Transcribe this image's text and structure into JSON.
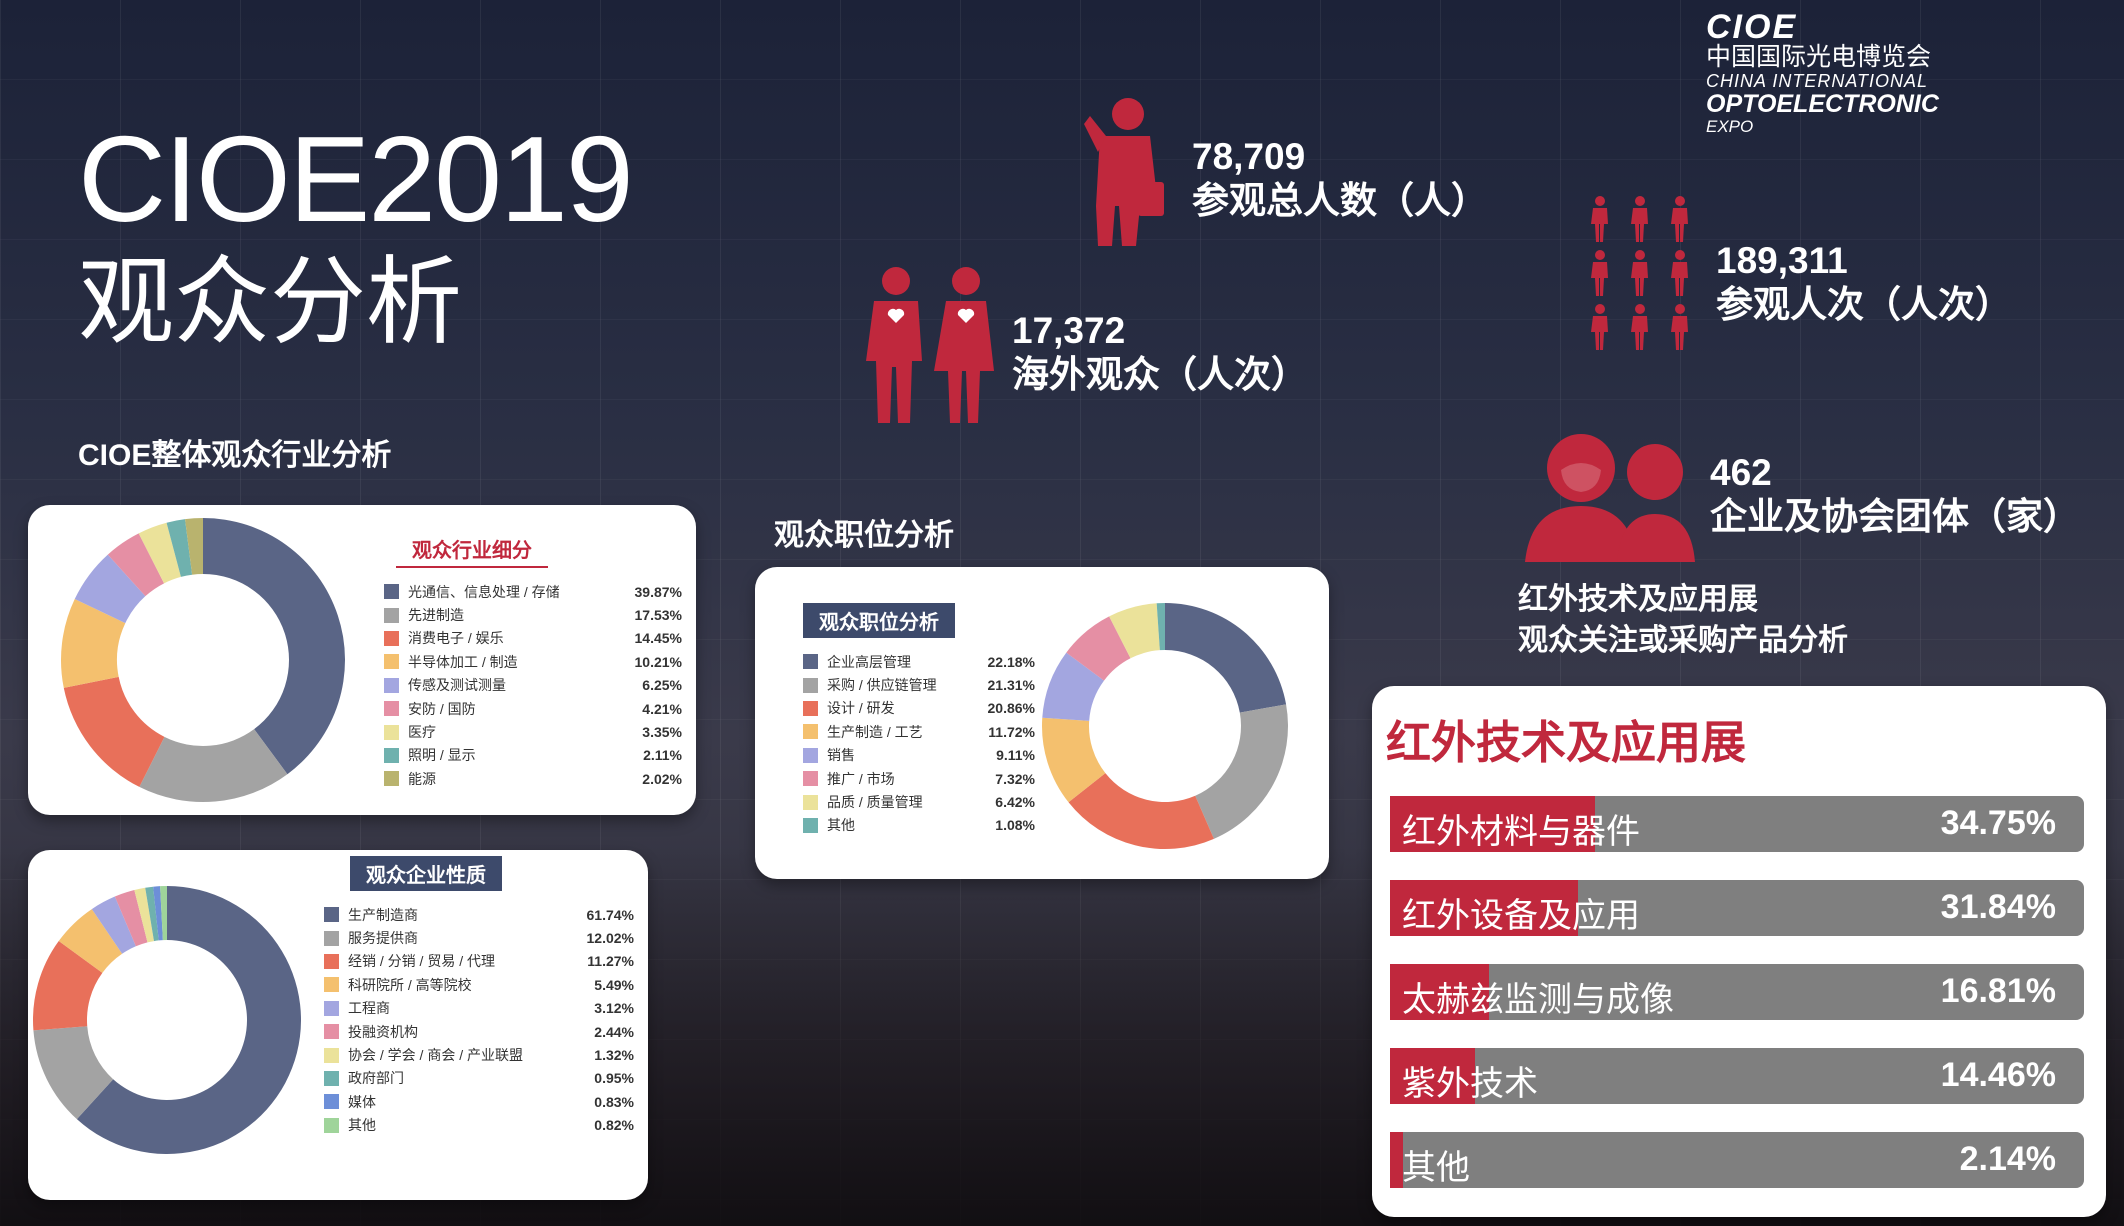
{
  "title": "CIOE2019",
  "subtitle": "观众分析",
  "logo": {
    "brand": "CIOE",
    "cn_name": "中国国际光电博览会",
    "en_line1": "CHINA INTERNATIONAL",
    "en_line2": "OPTOELECTRONIC",
    "en_line3": "EXPO"
  },
  "colors": {
    "accent_red": "#c0283d",
    "bar_gray": "#7f7f7f"
  },
  "stats": {
    "total_visitors": {
      "value": "78,709",
      "label": "参观总人数（人）",
      "icon": "businessman-icon"
    },
    "overseas": {
      "value": "17,372",
      "label": "海外观众（人次）",
      "icon": "couple-icon"
    },
    "visits": {
      "value": "189,311",
      "label": "参观人次（人次）",
      "icon": "crowd-icon"
    },
    "groups": {
      "value": "462",
      "label": "企业及协会团体（家）",
      "icon": "group-icon"
    }
  },
  "section_titles": {
    "industry": "CIOE整体观众行业分析",
    "position": "观众职位分析",
    "infrared": [
      "红外技术及应用展",
      "观众关注或采购产品分析"
    ]
  },
  "chart_data": [
    {
      "type": "pie",
      "title": "观众行业细分",
      "categories": [
        "光通信、信息处理 / 存储",
        "先进制造",
        "消费电子 / 娱乐",
        "半导体加工 / 制造",
        "传感及测试测量",
        "安防 / 国防",
        "医疗",
        "照明 / 显示",
        "能源"
      ],
      "values": [
        39.87,
        17.53,
        14.45,
        10.21,
        6.25,
        4.21,
        3.35,
        2.11,
        2.02
      ],
      "labels": [
        "39.87%",
        "17.53%",
        "14.45%",
        "10.21%",
        "6.25%",
        "4.21%",
        "3.35%",
        "2.11%",
        "2.02%"
      ],
      "colors": [
        "#5a6586",
        "#a3a3a3",
        "#e8705a",
        "#f4c06e",
        "#a3a6e0",
        "#e58fa4",
        "#ebe29a",
        "#6fb1ae",
        "#b9b36e"
      ]
    },
    {
      "type": "pie",
      "title": "观众职位分析",
      "categories": [
        "企业高层管理",
        "采购 / 供应链管理",
        "设计 / 研发",
        "生产制造 / 工艺",
        "销售",
        "推广 / 市场",
        "品质 / 质量管理",
        "其他"
      ],
      "values": [
        22.18,
        21.31,
        20.86,
        11.72,
        9.11,
        7.32,
        6.42,
        1.08
      ],
      "labels": [
        "22.18%",
        "21.31%",
        "20.86%",
        "11.72%",
        "9.11%",
        "7.32%",
        "6.42%",
        "1.08%"
      ],
      "colors": [
        "#5a6586",
        "#a3a3a3",
        "#e8705a",
        "#f4c06e",
        "#a3a6e0",
        "#e58fa4",
        "#ebe29a",
        "#6fb1ae"
      ]
    },
    {
      "type": "pie",
      "title": "观众企业性质",
      "categories": [
        "生产制造商",
        "服务提供商",
        "经销 / 分销 / 贸易 / 代理",
        "科研院所 / 高等院校",
        "工程商",
        "投融资机构",
        "协会 / 学会 / 商会 / 产业联盟",
        "政府部门",
        "媒体",
        "其他"
      ],
      "values": [
        61.74,
        12.02,
        11.27,
        5.49,
        3.12,
        2.44,
        1.32,
        0.95,
        0.83,
        0.82
      ],
      "labels": [
        "61.74%",
        "12.02%",
        "11.27%",
        "5.49%",
        "3.12%",
        "2.44%",
        "1.32%",
        "0.95%",
        "0.83%",
        "0.82%"
      ],
      "colors": [
        "#5a6586",
        "#a3a3a3",
        "#e8705a",
        "#f4c06e",
        "#a3a6e0",
        "#e58fa4",
        "#ebe29a",
        "#6fb1ae",
        "#6d8fd8",
        "#9fd49a"
      ]
    },
    {
      "type": "bar",
      "title": "红外技术及应用展",
      "categories": [
        "红外材料与器件",
        "红外设备及应用",
        "太赫兹监测与成像",
        "紫外技术",
        "其他"
      ],
      "values": [
        34.75,
        31.84,
        16.81,
        14.46,
        2.14
      ],
      "labels": [
        "34.75%",
        "31.84%",
        "16.81%",
        "14.46%",
        "2.14%"
      ],
      "xlim": [
        0,
        100
      ]
    }
  ]
}
